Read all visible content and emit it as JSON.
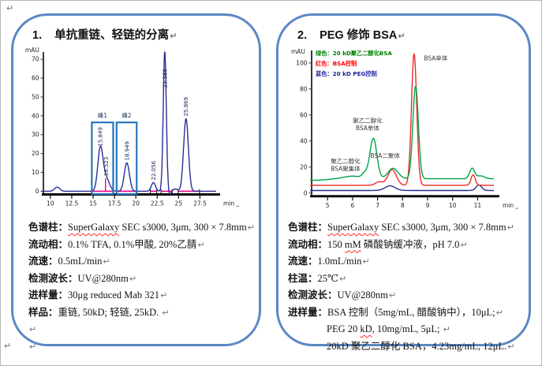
{
  "return_mark": "↵",
  "panels": [
    {
      "title_number": "1.",
      "title": "单抗重链、轻链的分离",
      "specs": [
        {
          "label": "色谱柱：",
          "parts": [
            {
              "t": "SuperGalaxy",
              "misspelled": true
            },
            {
              "t": " SEC s3000, 3μm, 300  × 7.8mm"
            }
          ]
        },
        {
          "label": "流动相：",
          "parts": [
            {
              "t": "0.1% TFA, 0.1%甲酸, 20%乙腈"
            }
          ]
        },
        {
          "label": "流速：",
          "parts": [
            {
              "t": "0.5mL/min"
            }
          ]
        },
        {
          "label": "检测波长：",
          "parts": [
            {
              "t": "UV@280nm"
            }
          ]
        },
        {
          "label": "进样量：",
          "parts": [
            {
              "t": "30μg reduced Mab 321"
            }
          ]
        },
        {
          "label": "样品：",
          "parts": [
            {
              "t": "重链, 50kD; 轻链, 25kD. "
            }
          ]
        },
        {
          "label": "",
          "parts": []
        },
        {
          "label": "",
          "parts": []
        }
      ]
    },
    {
      "title_number": "2.",
      "title": "PEG 修饰 BSA",
      "specs": [
        {
          "label": "色谱柱：",
          "parts": [
            {
              "t": "SuperGalaxy",
              "misspelled": true
            },
            {
              "t": " SEC s3000, 3μm, 300  × 7.8mm"
            }
          ]
        },
        {
          "label": "流动相：",
          "parts": [
            {
              "t": "150 "
            },
            {
              "t": "mM",
              "misspelled": true
            },
            {
              "t": " 磷酸钠缓冲液，pH 7.0"
            }
          ]
        },
        {
          "label": "流速：",
          "parts": [
            {
              "t": "1.0mL/min"
            }
          ]
        },
        {
          "label": "柱温：",
          "parts": [
            {
              "t": "25℃"
            }
          ]
        },
        {
          "label": "检测波长：",
          "parts": [
            {
              "t": "UV@280nm"
            }
          ]
        },
        {
          "label": "进样量：",
          "parts": [
            {
              "t": "BSA 控制（5mg/mL, 醋酸钠中），10μL;"
            }
          ]
        },
        {
          "label": "",
          "indent": true,
          "parts": [
            {
              "t": "PEG 20 "
            },
            {
              "t": "kD",
              "misspelled": true
            },
            {
              "t": ", 10mg/mL, 5μL; "
            }
          ]
        },
        {
          "label": "",
          "indent": true,
          "parts": [
            {
              "t": "20kD 聚乙二醇化 BSA，4.23mg/mL, 12μL."
            }
          ]
        }
      ]
    }
  ],
  "chart_data": [
    {
      "type": "line",
      "title": "",
      "xlabel": "min",
      "ylabel": "mAU",
      "x_range": [
        9.0,
        29.4
      ],
      "y_range": [
        -4,
        78
      ],
      "x_ticks": [
        10,
        12.5,
        15,
        17.5,
        20,
        22.5,
        25,
        27.5
      ],
      "y_ticks": [
        0,
        10,
        20,
        30,
        40,
        50,
        60,
        70
      ],
      "grid": false,
      "series": [
        {
          "name": "UV@280nm, reduced Mab 321",
          "color": "#2b2f94",
          "baseline": 0,
          "peaks": [
            {
              "rt": 10.8,
              "height": 2.2,
              "sigma": 0.3
            },
            {
              "rt": 15.849,
              "height": 22.5,
              "sigma": 0.3,
              "label": "15.849"
            },
            {
              "rt": 16.523,
              "height": 6.8,
              "sigma": 0.38,
              "label": "16.523"
            },
            {
              "rt": 18.949,
              "height": 15.0,
              "sigma": 0.3,
              "label": "18.949"
            },
            {
              "rt": 22.056,
              "height": 4.6,
              "sigma": 0.24,
              "label": "22.056"
            },
            {
              "rt": 23.386,
              "height": 74.0,
              "sigma": 0.18,
              "label": "23.386"
            },
            {
              "rt": 23.95,
              "height": -2.0,
              "sigma": 0.18
            },
            {
              "rt": 24.6,
              "height": 1.2,
              "sigma": 0.3
            },
            {
              "rt": 25.869,
              "height": 38.5,
              "sigma": 0.28,
              "label": "25.869"
            }
          ]
        }
      ],
      "integration_baseline_color": "#EC008C",
      "integration_baselines": [
        [
          14.9,
          17.3
        ],
        [
          17.8,
          20.05
        ],
        [
          21.7,
          22.45
        ],
        [
          22.95,
          24.25
        ],
        [
          24.95,
          27.45
        ]
      ],
      "drop_lines": [
        {
          "x": 16.45,
          "y1": 0,
          "y2": 6.8
        }
      ],
      "peak_boxes": [
        {
          "label": "峰1",
          "x1": 14.85,
          "x2": 17.35,
          "y1": -1.5,
          "y2": 36.5
        },
        {
          "label": "峰2",
          "x1": 17.75,
          "x2": 20.1,
          "y1": -1.5,
          "y2": 36.5
        }
      ],
      "box_color": "#2776BC"
    },
    {
      "type": "line",
      "title": "",
      "xlabel": "min",
      "ylabel": "mAU",
      "x_range": [
        4.3,
        11.65
      ],
      "y_range": [
        -5,
        112
      ],
      "x_ticks": [
        5,
        6,
        7,
        8,
        9,
        10,
        11
      ],
      "y_ticks": [
        0,
        20,
        40,
        60,
        80,
        100
      ],
      "grid": false,
      "legend": [
        {
          "label": "绿色：20 kD聚乙二醇化BSA",
          "color": "#008000"
        },
        {
          "label": "红色：BSA控制",
          "color": "#FF0000"
        },
        {
          "label": "蓝色：20 kD PEG控制",
          "color": "#1F1F9F"
        }
      ],
      "series": [
        {
          "name": "20 kD PEG控制",
          "color": "#2b2f94",
          "baseline": 2,
          "peaks": [
            {
              "rt": 7.5,
              "height": 3.6,
              "sigma": 0.2
            },
            {
              "rt": 11.05,
              "height": 4.2,
              "sigma": 0.11
            }
          ]
        },
        {
          "name": "BSA控制",
          "color": "#ee2b2b",
          "baseline": 6,
          "peaks": [
            {
              "rt": 7.06,
              "height": 2.6,
              "sigma": 0.14
            },
            {
              "rt": 7.58,
              "height": 12.0,
              "sigma": 0.17
            },
            {
              "rt": 8.46,
              "height": 101.0,
              "sigma": 0.105
            },
            {
              "rt": 10.82,
              "height": 8.0,
              "sigma": 0.085
            }
          ]
        },
        {
          "name": "20 kD聚乙二醇化BSA",
          "color": "#00a44a",
          "baseline": 11,
          "peaks": [
            {
              "rt": 4.4,
              "height": -1.2,
              "sigma": 0.5
            },
            {
              "rt": 6.0,
              "height": 2.0,
              "sigma": 0.35
            },
            {
              "rt": 6.48,
              "height": 3.5,
              "sigma": 0.1
            },
            {
              "rt": 6.83,
              "height": 31.0,
              "sigma": 0.14
            },
            {
              "rt": 7.62,
              "height": 8.0,
              "sigma": 0.2
            },
            {
              "rt": 8.52,
              "height": 71.0,
              "sigma": 0.11
            },
            {
              "rt": 10.78,
              "height": 8.0,
              "sigma": 0.1
            },
            {
              "rt": 11.12,
              "height": 2.2,
              "sigma": 0.15
            }
          ]
        }
      ],
      "annotations": [
        {
          "lines": [
            "BSA单体"
          ],
          "x": 8.85,
          "y": 102,
          "anchor": "start"
        },
        {
          "lines": [
            "聚乙二醇化",
            "BSA单体"
          ],
          "x": 6.6,
          "y": 54,
          "anchor": "middle"
        },
        {
          "lines": [
            "聚乙二醇化",
            "BSA聚集体"
          ],
          "x": 5.72,
          "y": 23,
          "anchor": "middle"
        },
        {
          "lines": [
            "BSA二聚体"
          ],
          "x": 7.3,
          "y": 27,
          "anchor": "middle"
        }
      ]
    }
  ]
}
